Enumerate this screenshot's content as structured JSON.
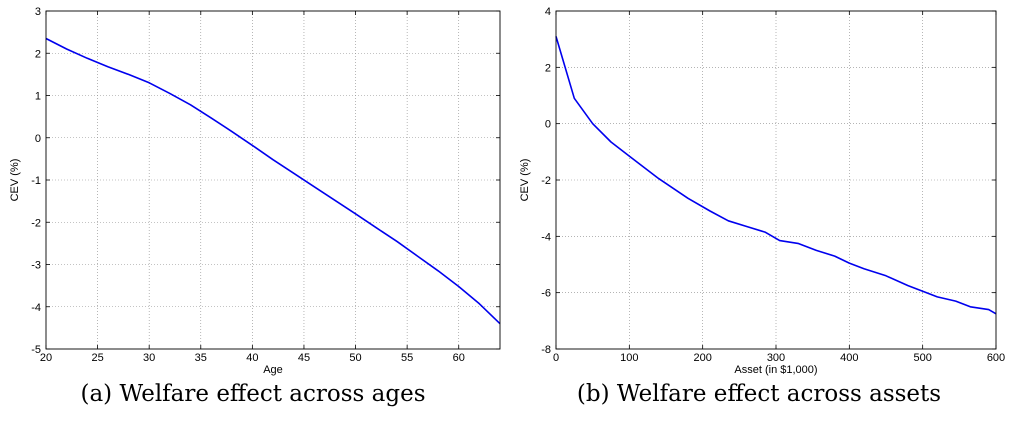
{
  "chart_data": [
    {
      "type": "line",
      "caption": "(a) Welfare effect across ages",
      "xlabel": "Age",
      "ylabel": "CEV (%)",
      "xlim": [
        20,
        64
      ],
      "ylim": [
        -5,
        3
      ],
      "xticks": [
        20,
        25,
        30,
        35,
        40,
        45,
        50,
        55,
        60
      ],
      "yticks": [
        -5,
        -4,
        -3,
        -2,
        -1,
        0,
        1,
        2,
        3
      ],
      "grid": true,
      "line_color": "#0000ee",
      "series": [
        {
          "x": [
            20,
            22,
            24,
            26,
            28,
            30,
            32,
            34,
            36,
            38,
            40,
            42,
            44,
            46,
            48,
            50,
            52,
            54,
            56,
            58,
            60,
            62,
            64
          ],
          "values": [
            2.35,
            2.1,
            1.88,
            1.68,
            1.5,
            1.3,
            1.05,
            0.78,
            0.47,
            0.15,
            -0.18,
            -0.52,
            -0.84,
            -1.16,
            -1.48,
            -1.8,
            -2.13,
            -2.45,
            -2.8,
            -3.15,
            -3.52,
            -3.93,
            -4.4
          ]
        }
      ]
    },
    {
      "type": "line",
      "caption": "(b) Welfare effect across assets",
      "xlabel": "Asset (in $1,000)",
      "ylabel": "CEV (%)",
      "xlim": [
        0,
        600
      ],
      "ylim": [
        -8,
        4
      ],
      "xticks": [
        0,
        100,
        200,
        300,
        400,
        500,
        600
      ],
      "yticks": [
        -8,
        -6,
        -4,
        -2,
        0,
        2,
        4
      ],
      "grid": true,
      "line_color": "#0000ee",
      "series": [
        {
          "x": [
            0,
            25,
            50,
            75,
            100,
            140,
            180,
            210,
            235,
            260,
            285,
            305,
            330,
            355,
            380,
            400,
            420,
            450,
            480,
            500,
            520,
            545,
            565,
            590,
            600
          ],
          "values": [
            3.1,
            0.9,
            0.0,
            -0.65,
            -1.15,
            -1.95,
            -2.65,
            -3.1,
            -3.45,
            -3.65,
            -3.85,
            -4.15,
            -4.25,
            -4.5,
            -4.7,
            -4.95,
            -5.15,
            -5.4,
            -5.75,
            -5.95,
            -6.15,
            -6.3,
            -6.5,
            -6.6,
            -6.75
          ]
        }
      ]
    }
  ]
}
